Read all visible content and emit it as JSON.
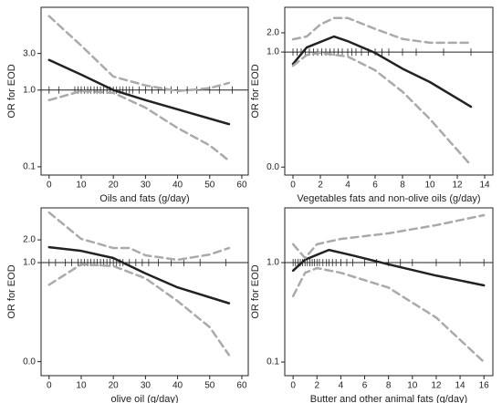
{
  "chart_data": [
    {
      "type": "line",
      "xlabel": "Oils and fats (g/day)",
      "ylabel": "OR for EOD",
      "log_y": true,
      "xlim": [
        -2.5,
        62
      ],
      "ylim": [
        0.078,
        12
      ],
      "xticks": [
        0,
        10,
        20,
        30,
        40,
        50,
        60
      ],
      "yticks": [
        0.1,
        {
          "value": 1,
          "label": "1.0"
        },
        {
          "value": 3,
          "label": "3.0"
        }
      ],
      "hline": 1,
      "rug": [
        0,
        3,
        8,
        9,
        10,
        11,
        12,
        13,
        14,
        15,
        16,
        17,
        18,
        19,
        20,
        21,
        22,
        23,
        24,
        25,
        26,
        28,
        30,
        32,
        34,
        36,
        38,
        40,
        43,
        46,
        50,
        53,
        57
      ],
      "series": [
        {
          "color": "#222222",
          "dashed": false,
          "x": [
            0,
            10,
            20,
            30,
            40,
            56
          ],
          "values": [
            2.47,
            1.59,
            1.0,
            0.74,
            0.56,
            0.36
          ]
        },
        {
          "color": "#aaaaaa",
          "dashed": true,
          "x": [
            0,
            10,
            20,
            30,
            40,
            50,
            56
          ],
          "values": [
            9.2,
            3.8,
            1.5,
            1.15,
            0.97,
            1.06,
            1.24
          ]
        },
        {
          "color": "#aaaaaa",
          "dashed": true,
          "x": [
            0,
            10,
            20,
            30,
            40,
            50,
            56
          ],
          "values": [
            0.74,
            0.97,
            0.92,
            0.59,
            0.32,
            0.19,
            0.12
          ]
        }
      ]
    },
    {
      "type": "line",
      "xlabel": "Vegetables fats and non-olive oils (g/day)",
      "ylabel": "OR for EOD",
      "log_y": true,
      "xlim": [
        -0.6,
        14.6
      ],
      "ylim": [
        0.012,
        5
      ],
      "xticks": [
        0,
        2,
        4,
        6,
        8,
        10,
        12,
        14
      ],
      "yticks": [
        {
          "value": 0.016,
          "label": "0.0"
        },
        {
          "value": 1,
          "label": "1.0"
        },
        {
          "value": 2,
          "label": "2.0"
        }
      ],
      "hline": 1,
      "rug": [
        0,
        0.3,
        0.6,
        0.9,
        1.2,
        1.5,
        1.8,
        2.1,
        2.4,
        2.7,
        3,
        3.3,
        3.6,
        4,
        4.3,
        4.6,
        5,
        5.5,
        6,
        6.5,
        7,
        8,
        9,
        11,
        13
      ],
      "series": [
        {
          "color": "#222222",
          "dashed": false,
          "x": [
            0,
            1,
            3,
            4,
            6,
            8,
            10,
            13
          ],
          "values": [
            0.65,
            1.18,
            1.75,
            1.48,
            0.97,
            0.55,
            0.34,
            0.14
          ]
        },
        {
          "color": "#aaaaaa",
          "dashed": true,
          "x": [
            0,
            1,
            2,
            3,
            4,
            6,
            8,
            10,
            13
          ],
          "values": [
            1.58,
            1.75,
            2.7,
            3.4,
            3.4,
            2.3,
            1.6,
            1.4,
            1.4
          ]
        },
        {
          "color": "#aaaaaa",
          "dashed": true,
          "x": [
            0,
            1,
            2,
            4,
            6,
            8,
            10,
            13
          ],
          "values": [
            0.61,
            0.9,
            0.97,
            0.85,
            0.52,
            0.24,
            0.09,
            0.017
          ]
        }
      ]
    },
    {
      "type": "line",
      "xlabel": "olive oil (g/day)",
      "ylabel": "OR for EOD",
      "log_y": true,
      "xlim": [
        -2.5,
        62
      ],
      "ylim": [
        0.032,
        5.3
      ],
      "xticks": [
        0,
        10,
        20,
        30,
        40,
        50,
        60
      ],
      "yticks": [
        {
          "value": 0.049,
          "label": "0.0"
        },
        {
          "value": 1,
          "label": "1.0"
        },
        {
          "value": 2,
          "label": "2.0"
        }
      ],
      "hline": 1,
      "rug": [
        0,
        2,
        5,
        7,
        9,
        10,
        11,
        12,
        13,
        14,
        15,
        16,
        17,
        18,
        19,
        20,
        21,
        22,
        23,
        25,
        27,
        29,
        31,
        34,
        38,
        42,
        47,
        55
      ],
      "series": [
        {
          "color": "#222222",
          "dashed": false,
          "x": [
            0,
            10,
            20,
            30,
            40,
            56
          ],
          "values": [
            1.6,
            1.43,
            1.15,
            0.72,
            0.47,
            0.29
          ]
        },
        {
          "color": "#aaaaaa",
          "dashed": true,
          "x": [
            0,
            10,
            20,
            25,
            30,
            40,
            50,
            56
          ],
          "values": [
            4.6,
            2.06,
            1.56,
            1.56,
            1.25,
            1.09,
            1.28,
            1.56
          ]
        },
        {
          "color": "#aaaaaa",
          "dashed": true,
          "x": [
            0,
            10,
            20,
            30,
            40,
            50,
            56
          ],
          "values": [
            0.51,
            0.95,
            0.9,
            0.62,
            0.31,
            0.14,
            0.06
          ]
        }
      ]
    },
    {
      "type": "line",
      "xlabel": "Butter and other animal fats (g/day)",
      "ylabel": "OR for EOD",
      "log_y": true,
      "xlim": [
        -0.7,
        16.75
      ],
      "ylim": [
        0.073,
        3.55
      ],
      "xticks": [
        0,
        2,
        4,
        6,
        8,
        10,
        12,
        14,
        16
      ],
      "yticks": [
        0.1,
        {
          "value": 1,
          "label": "1.0"
        }
      ],
      "hline": 1,
      "rug": [
        0,
        0.2,
        0.4,
        0.6,
        0.8,
        1,
        1.2,
        1.4,
        1.6,
        1.8,
        2,
        2.2,
        2.5,
        2.8,
        3,
        3.3,
        3.6,
        4,
        4.5,
        5,
        6,
        7,
        8,
        9,
        10,
        12,
        14,
        16
      ],
      "series": [
        {
          "color": "#222222",
          "dashed": false,
          "x": [
            0,
            1,
            3,
            5,
            8,
            12,
            16
          ],
          "values": [
            0.83,
            1.07,
            1.34,
            1.18,
            0.96,
            0.74,
            0.59
          ]
        },
        {
          "color": "#aaaaaa",
          "dashed": true,
          "x": [
            0,
            1,
            2,
            4,
            8,
            12,
            16
          ],
          "values": [
            1.53,
            1.11,
            1.53,
            1.73,
            1.97,
            2.38,
            3.0
          ]
        },
        {
          "color": "#aaaaaa",
          "dashed": true,
          "x": [
            0,
            1,
            2,
            4,
            8,
            12,
            16
          ],
          "values": [
            0.46,
            0.79,
            0.88,
            0.79,
            0.56,
            0.28,
            0.1
          ]
        }
      ]
    }
  ]
}
